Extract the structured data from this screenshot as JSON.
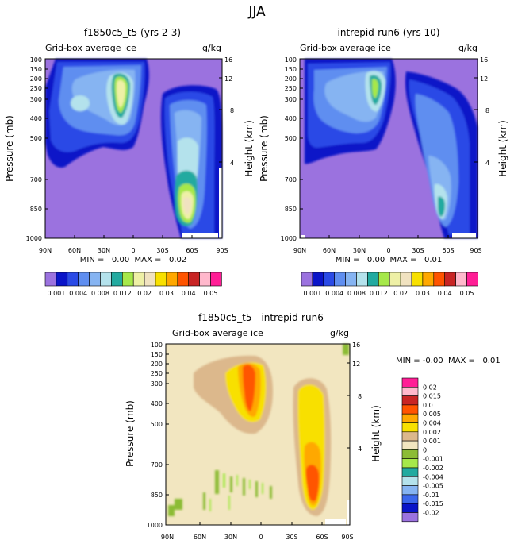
{
  "main_title": "JJA",
  "field_label": "Grid-box average ice",
  "units": "g/kg",
  "ylabel_left": "Pressure (mb)",
  "ylabel_right": "Height (km)",
  "pressure_ticks": [
    "100",
    "150",
    "200",
    "250",
    "300",
    "400",
    "500",
    "700",
    "850",
    "1000"
  ],
  "height_ticks": [
    "16",
    "12",
    "8",
    "4"
  ],
  "lat_ticks": [
    "90N",
    "60N",
    "30N",
    "0",
    "30S",
    "60S",
    "90S"
  ],
  "colors": {
    "background_plot": "#9b72df",
    "abs_scale": [
      "#9b72df",
      "#0a14c8",
      "#2a4ae6",
      "#5f8ef0",
      "#86b4f2",
      "#b4e2ec",
      "#22aaa0",
      "#a6e84a",
      "#eef0a6",
      "#f0e2c0",
      "#f8e000",
      "#ffa800",
      "#ff5400",
      "#c82424",
      "#ffb8cc",
      "#ff1e96"
    ],
    "diff_scale": [
      "#9b72df",
      "#0a14c8",
      "#3c68ec",
      "#86b4f2",
      "#b4e2ec",
      "#22aaa0",
      "#a6e84a",
      "#8cbc36",
      "#f2e6c0",
      "#dcb88c",
      "#f8e000",
      "#ffa800",
      "#ff5400",
      "#c82424",
      "#ffb8cc",
      "#ff1e96"
    ]
  },
  "panels": [
    {
      "title": "f1850c5_t5 (yrs 2-3)",
      "stats": "MIN =   0.00  MAX =   0.02"
    },
    {
      "title": "intrepid-run6 (yrs 10)",
      "stats": "MIN =   0.00  MAX =   0.01"
    },
    {
      "title": "f1850c5_t5 - intrepid-run6",
      "stats": "MIN = -0.00  MAX =   0.01"
    }
  ],
  "abs_colorbar_labels": [
    "0.001",
    "0.004",
    "0.008",
    "0.012",
    "0.02",
    "0.03",
    "0.04",
    "0.05"
  ],
  "diff_colorbar_labels": [
    "0.02",
    "0.015",
    "0.01",
    "0.005",
    "0.004",
    "0.002",
    "0.001",
    "0",
    "-0.001",
    "-0.002",
    "-0.004",
    "-0.005",
    "-0.01",
    "-0.015",
    "-0.02"
  ],
  "chart_data": [
    {
      "type": "heatmap",
      "title": "f1850c5_t5 (yrs 2-3)",
      "field": "Grid-box average ice",
      "units": "g/kg",
      "xlabel": "",
      "ylabel": "Pressure (mb)",
      "y2label": "Height (km)",
      "xlim": [
        "90N",
        "90S"
      ],
      "ylim": [
        1000,
        100
      ],
      "contour_levels": [
        0.001,
        0.002,
        0.004,
        0.006,
        0.008,
        0.01,
        0.012,
        0.015,
        0.02,
        0.025,
        0.03,
        0.035,
        0.04,
        0.045,
        0.05
      ],
      "min": 0.0,
      "max": 0.02
    },
    {
      "type": "heatmap",
      "title": "intrepid-run6 (yrs 10)",
      "field": "Grid-box average ice",
      "units": "g/kg",
      "xlabel": "",
      "ylabel": "Pressure (mb)",
      "y2label": "Height (km)",
      "xlim": [
        "90N",
        "90S"
      ],
      "ylim": [
        1000,
        100
      ],
      "contour_levels": [
        0.001,
        0.002,
        0.004,
        0.006,
        0.008,
        0.01,
        0.012,
        0.015,
        0.02,
        0.025,
        0.03,
        0.035,
        0.04,
        0.045,
        0.05
      ],
      "min": 0.0,
      "max": 0.01
    },
    {
      "type": "heatmap",
      "title": "f1850c5_t5 - intrepid-run6",
      "field": "Grid-box average ice",
      "units": "g/kg",
      "xlabel": "",
      "ylabel": "Pressure (mb)",
      "y2label": "Height (km)",
      "xlim": [
        "90N",
        "90S"
      ],
      "ylim": [
        1000,
        100
      ],
      "contour_levels": [
        -0.02,
        -0.015,
        -0.01,
        -0.005,
        -0.004,
        -0.002,
        -0.001,
        0,
        0.001,
        0.002,
        0.004,
        0.005,
        0.01,
        0.015,
        0.02
      ],
      "min": -0.0,
      "max": 0.01
    }
  ]
}
